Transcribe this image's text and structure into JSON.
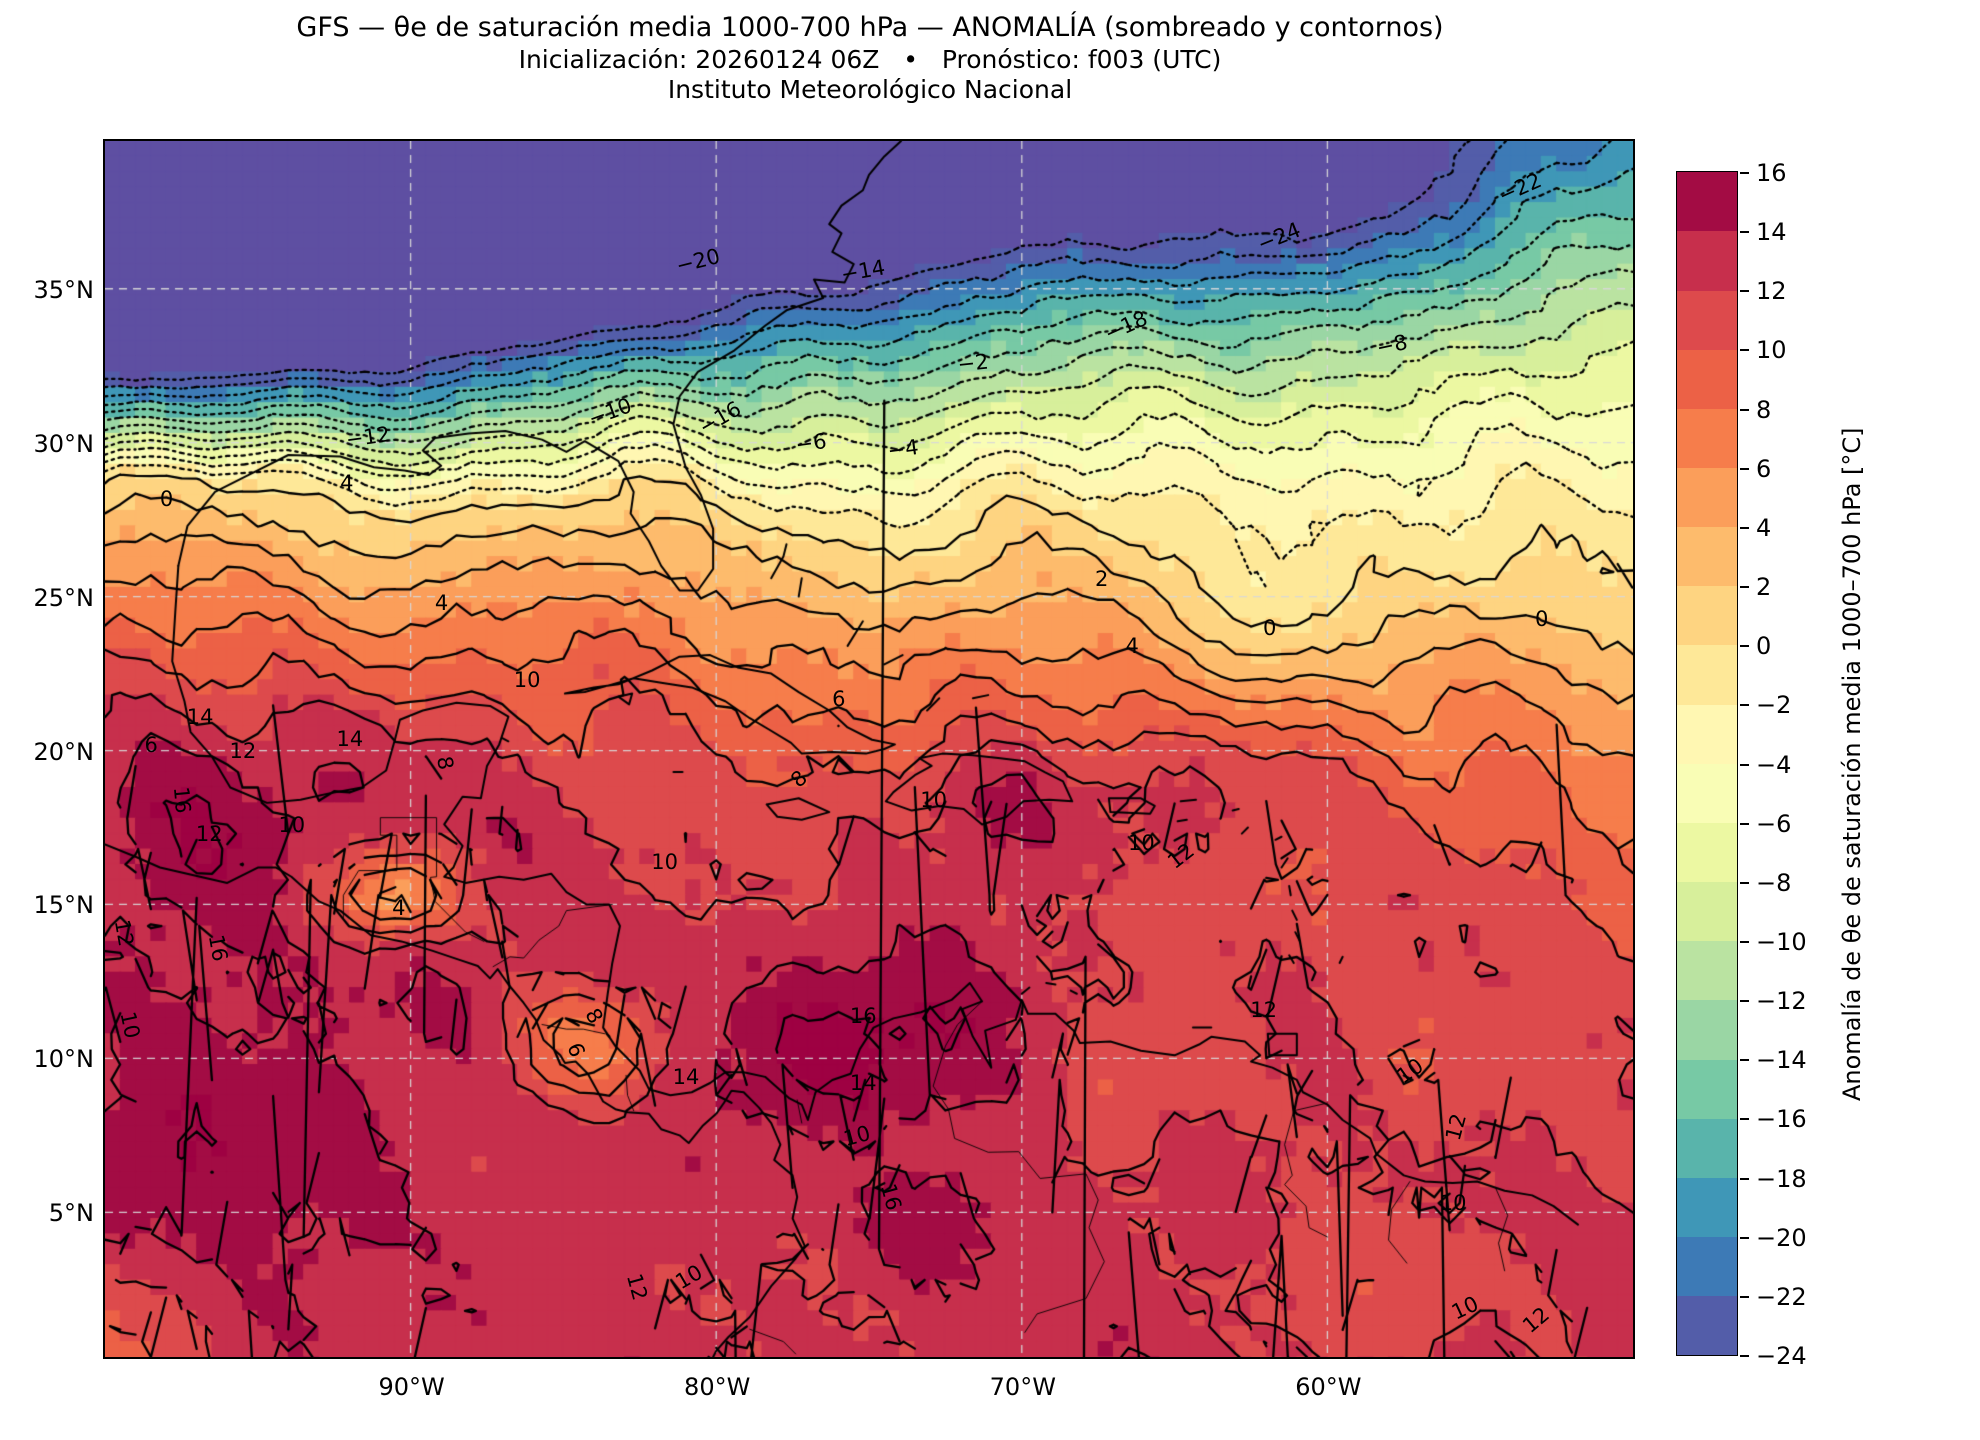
{
  "title": {
    "line1": "GFS — θe de saturación media 1000-700 hPa — ANOMALÍA (sombreado y contornos)",
    "line2": "Inicialización: 20260124 06Z   •   Pronóstico: f003 (UTC)",
    "line3": "Instituto Meteorológico Nacional"
  },
  "axes": {
    "lat_ticks": [
      {
        "label": "35°N",
        "value": 35
      },
      {
        "label": "30°N",
        "value": 30
      },
      {
        "label": "25°N",
        "value": 25
      },
      {
        "label": "20°N",
        "value": 20
      },
      {
        "label": "15°N",
        "value": 15
      },
      {
        "label": "10°N",
        "value": 10
      },
      {
        "label": "5°N",
        "value": 5
      }
    ],
    "lon_ticks": [
      {
        "label": "90°W",
        "value": -90
      },
      {
        "label": "80°W",
        "value": -80
      },
      {
        "label": "70°W",
        "value": -70
      },
      {
        "label": "60°W",
        "value": -60
      }
    ]
  },
  "colorbar": {
    "label": "Anomalía de θe de saturación media 1000–700 hPa [°C]",
    "tick_labels": [
      "16",
      "14",
      "12",
      "10",
      "8",
      "6",
      "4",
      "2",
      "0",
      "−2",
      "−4",
      "−6",
      "−8",
      "−10",
      "−12",
      "−14",
      "−16",
      "−18",
      "−20",
      "−22",
      "−24"
    ],
    "tick_values": [
      16,
      14,
      12,
      10,
      8,
      6,
      4,
      2,
      0,
      -2,
      -4,
      -6,
      -8,
      -10,
      -12,
      -14,
      -16,
      -18,
      -20,
      -22,
      -24
    ],
    "min": -24,
    "max": 16,
    "step": 2
  },
  "chart_data": {
    "type": "filled_contour_map",
    "model": "GFS",
    "variable": "θe de saturación media 1000-700 hPa",
    "mode": "ANOMALÍA (sombreado y contornos)",
    "init": "20260124 06Z",
    "forecast": "f003 (UTC)",
    "units": "°C",
    "institution": "Instituto Meteorológico Nacional",
    "extent": {
      "lon_min": -100,
      "lon_max": -50,
      "lat_min": 0.3,
      "lat_max": 39.8
    },
    "levels": {
      "min": -24,
      "max": 16,
      "step": 2
    },
    "contour_style": {
      "negative": "dotted",
      "zero_and_positive": "solid"
    },
    "colormap": {
      "name": "Spectral_r",
      "under": "#5e4fa2",
      "over": "#9e0142",
      "band_colors": [
        "#535da9",
        "#3d7ab6",
        "#3f97b7",
        "#59b4ab",
        "#77c9a5",
        "#9ad6a4",
        "#bae3a1",
        "#d7ef9b",
        "#ecf8a2",
        "#f9fdb5",
        "#fff7b2",
        "#fee898",
        "#fed481",
        "#fdbb6c",
        "#fb9e5a",
        "#f67d4b",
        "#ec6146",
        "#dd4a4c",
        "#c72f4c",
        "#a30c44"
      ]
    },
    "grid_resolution_deg": 0.5,
    "field_model": {
      "description": "anomaly [°C]: strong negative NW-to-NE gradient north of a frontal zero-line along ~28N, positive 8-16 over tropics",
      "zero_line": {
        "base": 28.5,
        "dip": 3.5,
        "dip_exp": 1.6,
        "w1a": 0.55,
        "w1f": 0.45,
        "w2a": 0.3,
        "w2f": 1.1,
        "w2p": 1.0
      },
      "negative": {
        "lat24_base": 32.0,
        "lat24_gain": 11.5,
        "lat24_exp": 1.8,
        "gamma_base": 1.0,
        "gamma_gain": 0.3,
        "depth": -24,
        "clamp": -30
      },
      "positive": {
        "cap": 13.4,
        "g_base": 1.95,
        "g_slope": 0.7
      },
      "wiggle": {
        "a1": 0.85,
        "a2": 0.45
      },
      "noise_amp": 1.0,
      "blobs": [
        [
          -97.4,
          17.8,
          2.0,
          3.0,
          3.2
        ],
        [
          -92.3,
          20.2,
          1.6,
          1.3,
          2.0
        ],
        [
          -91.0,
          17.0,
          5.0,
          3.0,
          1.6
        ],
        [
          -70.8,
          18.3,
          2.6,
          1.6,
          3.0
        ],
        [
          -63.0,
          19.0,
          3.0,
          1.7,
          4.0
        ],
        [
          -74.8,
          10.3,
          3.4,
          2.2,
          3.8
        ],
        [
          -74.8,
          6.8,
          2.0,
          1.5,
          -3.0
        ],
        [
          -74.5,
          4.6,
          2.5,
          1.8,
          3.0
        ],
        [
          -98.5,
          6.5,
          3.5,
          3.0,
          2.6
        ],
        [
          -90.6,
          15.3,
          1.7,
          1.1,
          -8.5
        ],
        [
          -84.3,
          10.4,
          1.7,
          1.3,
          -5.5
        ],
        [
          -77.5,
          2.8,
          2.6,
          2.0,
          -3.0
        ],
        [
          -66.5,
          9.2,
          2.2,
          1.6,
          -2.6
        ],
        [
          -59.5,
          2.5,
          3.0,
          2.4,
          -3.0
        ],
        [
          -57.0,
          9.5,
          2.2,
          1.8,
          -2.6
        ],
        [
          -62.5,
          24.5,
          2.4,
          1.6,
          -1.8
        ],
        [
          -99.5,
          1.0,
          2.2,
          2.2,
          -4.5
        ],
        [
          -60.5,
          37.8,
          5.0,
          2.8,
          -6.5
        ]
      ]
    },
    "contour_labels": [
      {
        "t": "−22",
        "lon": -53.7,
        "lat": 38.3,
        "r": -24
      },
      {
        "t": "−24",
        "lon": -61.6,
        "lat": 36.7,
        "r": -22
      },
      {
        "t": "−18",
        "lon": -66.6,
        "lat": 33.8,
        "r": -24
      },
      {
        "t": "−20",
        "lon": -80.6,
        "lat": 35.9,
        "r": -14
      },
      {
        "t": "−14",
        "lon": -75.2,
        "lat": 35.6,
        "r": -10
      },
      {
        "t": "−8",
        "lon": -57.9,
        "lat": 33.2,
        "r": -12
      },
      {
        "t": "−16",
        "lon": -79.9,
        "lat": 30.8,
        "r": -30
      },
      {
        "t": "−10",
        "lon": -83.5,
        "lat": 31.0,
        "r": -20
      },
      {
        "t": "−6",
        "lon": -76.9,
        "lat": 30.0,
        "r": -8
      },
      {
        "t": "−4",
        "lon": -73.9,
        "lat": 29.8,
        "r": -8
      },
      {
        "t": "−2",
        "lon": -71.6,
        "lat": 32.6,
        "r": -6
      },
      {
        "t": "−12",
        "lon": -91.4,
        "lat": 30.2,
        "r": -8
      },
      {
        "t": "0",
        "lon": -98.0,
        "lat": 28.2,
        "r": 0
      },
      {
        "t": "0",
        "lon": -61.9,
        "lat": 24.0,
        "r": 0
      },
      {
        "t": "0",
        "lon": -53.0,
        "lat": 24.3,
        "r": 0
      },
      {
        "t": "2",
        "lon": -67.4,
        "lat": 25.6,
        "r": 0
      },
      {
        "t": "4",
        "lon": -92.1,
        "lat": 28.7,
        "r": 0
      },
      {
        "t": "4",
        "lon": -89.0,
        "lat": 24.8,
        "r": 0
      },
      {
        "t": "4",
        "lon": -66.4,
        "lat": 23.4,
        "r": 0
      },
      {
        "t": "4",
        "lon": -90.4,
        "lat": 14.9,
        "r": 0
      },
      {
        "t": "6",
        "lon": -98.5,
        "lat": 20.2,
        "r": 0
      },
      {
        "t": "6",
        "lon": -76.0,
        "lat": 21.7,
        "r": 0
      },
      {
        "t": "6",
        "lon": -84.6,
        "lat": 10.3,
        "r": 70
      },
      {
        "t": "8",
        "lon": -77.3,
        "lat": 19.1,
        "r": -42
      },
      {
        "t": "8",
        "lon": -88.9,
        "lat": 19.6,
        "r": 80
      },
      {
        "t": "8",
        "lon": -84.0,
        "lat": 11.4,
        "r": 60
      },
      {
        "t": "10",
        "lon": -86.2,
        "lat": 22.3,
        "r": 0
      },
      {
        "t": "10",
        "lon": -93.9,
        "lat": 17.6,
        "r": 0
      },
      {
        "t": "10",
        "lon": -81.7,
        "lat": 16.4,
        "r": 0
      },
      {
        "t": "10",
        "lon": -66.1,
        "lat": 17.0,
        "r": 0
      },
      {
        "t": "10",
        "lon": -99.2,
        "lat": 11.1,
        "r": 78
      },
      {
        "t": "10",
        "lon": -57.3,
        "lat": 9.6,
        "r": -35
      },
      {
        "t": "10",
        "lon": -55.9,
        "lat": 5.3,
        "r": 0
      },
      {
        "t": "10",
        "lon": -55.5,
        "lat": 1.9,
        "r": -25
      },
      {
        "t": "10",
        "lon": -80.9,
        "lat": 2.9,
        "r": -30
      },
      {
        "t": "10",
        "lon": -72.9,
        "lat": 18.4,
        "r": 0
      },
      {
        "t": "10",
        "lon": -75.4,
        "lat": 7.5,
        "r": -15
      },
      {
        "t": "12",
        "lon": -96.6,
        "lat": 17.3,
        "r": 0
      },
      {
        "t": "12",
        "lon": -95.5,
        "lat": 20.0,
        "r": 0
      },
      {
        "t": "12",
        "lon": -64.8,
        "lat": 16.6,
        "r": -38
      },
      {
        "t": "12",
        "lon": -62.1,
        "lat": 11.6,
        "r": 0
      },
      {
        "t": "12",
        "lon": -82.6,
        "lat": 2.6,
        "r": 75
      },
      {
        "t": "12",
        "lon": -55.8,
        "lat": 7.8,
        "r": -75
      },
      {
        "t": "12",
        "lon": -53.2,
        "lat": 1.5,
        "r": -40
      },
      {
        "t": "12",
        "lon": -99.4,
        "lat": 14.1,
        "r": 80
      },
      {
        "t": "14",
        "lon": -96.9,
        "lat": 21.1,
        "r": 0
      },
      {
        "t": "14",
        "lon": -92.0,
        "lat": 20.4,
        "r": 0
      },
      {
        "t": "14",
        "lon": -75.2,
        "lat": 9.2,
        "r": 0
      },
      {
        "t": "14",
        "lon": -81.0,
        "lat": 9.4,
        "r": 0
      },
      {
        "t": "16",
        "lon": -97.5,
        "lat": 18.4,
        "r": 85
      },
      {
        "t": "16",
        "lon": -96.3,
        "lat": 13.6,
        "r": 80
      },
      {
        "t": "16",
        "lon": -75.2,
        "lat": 11.4,
        "r": 0
      },
      {
        "t": "16",
        "lon": -74.3,
        "lat": 5.5,
        "r": 75
      }
    ]
  }
}
